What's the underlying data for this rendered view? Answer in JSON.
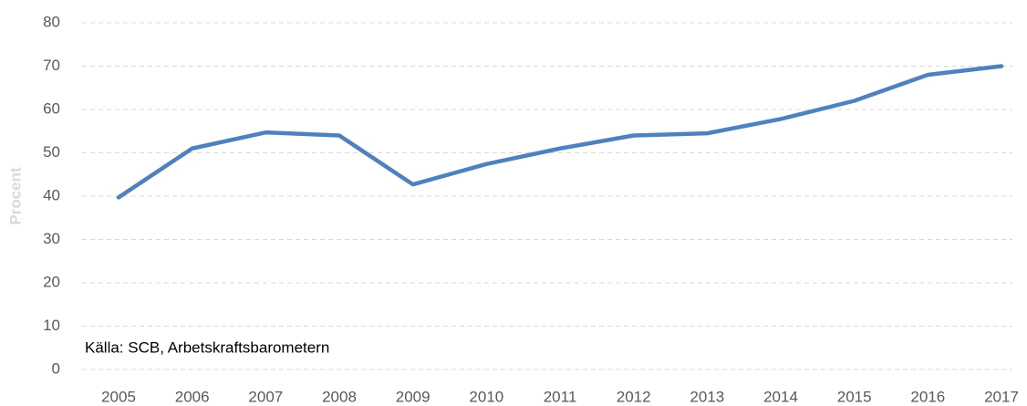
{
  "chart_data": {
    "type": "line",
    "y_label": "Procent",
    "annotation": "Källa: SCB, Arbetskraftsbarometern",
    "categories": [
      "2005",
      "2006",
      "2007",
      "2008",
      "2009",
      "2010",
      "2011",
      "2012",
      "2013",
      "2014",
      "2015",
      "2016",
      "2017"
    ],
    "series": [
      {
        "color": "#4f81bd",
        "values": [
          39.7,
          51,
          54.7,
          54,
          42.7,
          47.4,
          51,
          54,
          54.5,
          57.8,
          62,
          68,
          70
        ]
      }
    ],
    "ylim": [
      0,
      80
    ],
    "yticks": [
      0,
      10,
      20,
      30,
      40,
      50,
      60,
      70,
      80
    ],
    "grid": true
  }
}
